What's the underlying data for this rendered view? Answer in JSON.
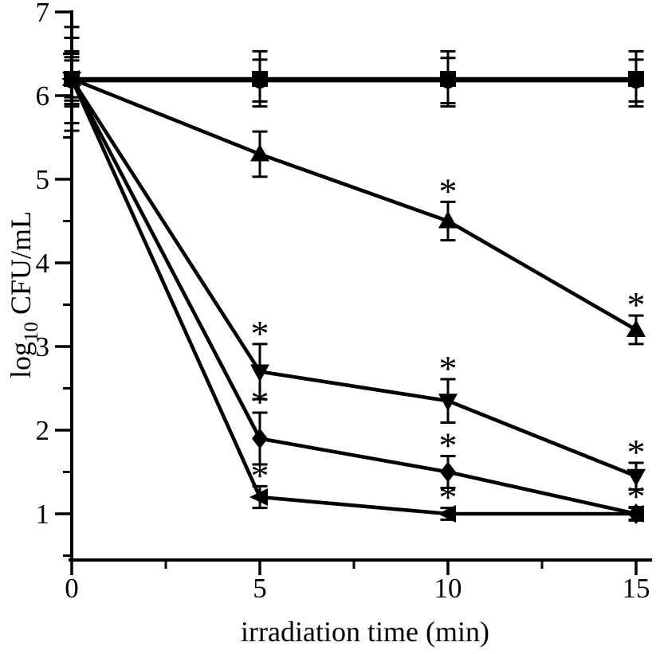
{
  "figure": {
    "background": "#ffffff",
    "ink": "#000000",
    "title": "",
    "legend": "none"
  },
  "chart_data": {
    "type": "line",
    "x": [
      0,
      5,
      10,
      15
    ],
    "xlabel": "irradiation time (min)",
    "ylabel_plain": "log10 CFU/mL",
    "ylabel_parts": {
      "prefix": "log",
      "sub": "10",
      "suffix": " CFU/mL"
    },
    "xlim": [
      0,
      15.4
    ],
    "ylim": [
      0.45,
      7
    ],
    "x_major_ticks": [
      0,
      5,
      10,
      15
    ],
    "x_minor_ticks": [
      2.5,
      7.5,
      12.5
    ],
    "y_major_ticks": [
      7,
      6,
      5,
      4,
      3,
      2,
      1
    ],
    "y_minor_ticks": [
      6.5,
      5.5,
      4.5,
      3.5,
      2.5,
      1.5,
      0.5
    ],
    "grid": false,
    "significance_symbol": "*",
    "error_bars": true,
    "series": [
      {
        "name": "flat-control-circle",
        "marker": "circle",
        "values": [
          6.18,
          6.18,
          6.18,
          6.18
        ],
        "err": [
          0.51,
          0.25,
          0.27,
          0.25
        ],
        "sig": [
          false,
          false,
          false,
          false
        ]
      },
      {
        "name": "flat-control-square",
        "marker": "square",
        "values": [
          6.2,
          6.2,
          6.2,
          6.2
        ],
        "err": [
          0.62,
          0.33,
          0.33,
          0.33
        ],
        "sig": [
          false,
          false,
          false,
          false
        ]
      },
      {
        "name": "up-triangle-series",
        "marker": "triangle-up",
        "values": [
          6.2,
          5.3,
          4.5,
          3.2
        ],
        "err": [
          0.33,
          0.27,
          0.23,
          0.17
        ],
        "sig": [
          false,
          false,
          true,
          true
        ]
      },
      {
        "name": "down-triangle-series",
        "marker": "triangle-down",
        "values": [
          6.2,
          2.7,
          2.35,
          1.45
        ],
        "err": [
          0.3,
          0.33,
          0.26,
          0.16
        ],
        "sig": [
          false,
          true,
          true,
          true
        ]
      },
      {
        "name": "diamond-series",
        "marker": "diamond",
        "values": [
          6.2,
          1.9,
          1.5,
          1.0
        ],
        "err": [
          0.26,
          0.31,
          0.19,
          0.08
        ],
        "sig": [
          false,
          true,
          true,
          true
        ]
      },
      {
        "name": "left-triangle-series",
        "marker": "triangle-left",
        "values": [
          6.2,
          1.2,
          1.0,
          1.0
        ],
        "err": [
          0.22,
          0.13,
          0.07,
          0.07
        ],
        "sig": [
          false,
          true,
          true,
          false
        ]
      }
    ]
  }
}
